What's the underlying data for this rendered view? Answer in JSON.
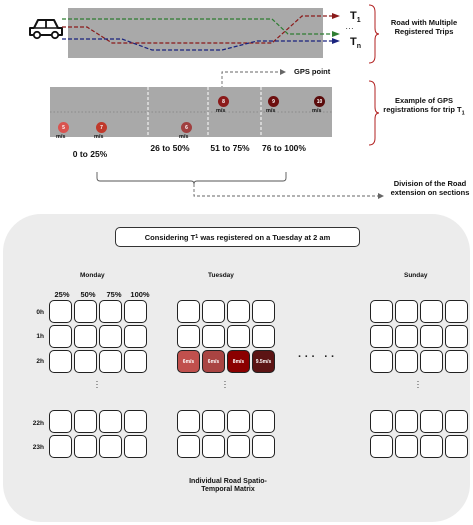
{
  "colors": {
    "road": "#a9a9a9",
    "panel": "#ececec",
    "trip1": "#8b1a1a",
    "trip2": "#2e7d32",
    "tripN": "#1a237e",
    "bubble_light": "#d9534f",
    "bubble_mid": "#a52a2a",
    "bubble_dark": "#6d0f0f"
  },
  "top": {
    "car_icon": "car-icon",
    "trip_first": "T",
    "trip_first_sub": "1",
    "trip_dots": "…",
    "trip_last": "T",
    "trip_last_sub": "n",
    "desc": "Road with Multiple Registered Trips"
  },
  "gps": {
    "point_label": "GPS point",
    "desc": "Example of GPS registrations for trip T",
    "desc_sub": "1",
    "unit": "m/s",
    "speeds": [
      "5",
      "7",
      "6",
      "8",
      "9",
      "10"
    ],
    "sections": [
      "0 to 25%",
      "26 to 50%",
      "51 to 75%",
      "76 to 100%"
    ],
    "division_desc": "Division of the Road extension on sections"
  },
  "matrix": {
    "condition_prefix": "Considering T",
    "condition_sub": "1",
    "condition_suffix": " was registered on a Tuesday at 2 am",
    "days": [
      "Monday",
      "Tuesday",
      "Sunday"
    ],
    "section_headers": [
      "25%",
      "50%",
      "75%",
      "100%"
    ],
    "hours": [
      "0h",
      "1h",
      "2h",
      "22h",
      "23h"
    ],
    "tuesday_2h": [
      "6m/s",
      "6m/s",
      "8m/s",
      "9.5m/s"
    ],
    "ellipsis": "· · ·   · ·",
    "vertical_dots": "·\n·\n·",
    "footer": "Individual Road Spatio-Temporal Matrix"
  }
}
